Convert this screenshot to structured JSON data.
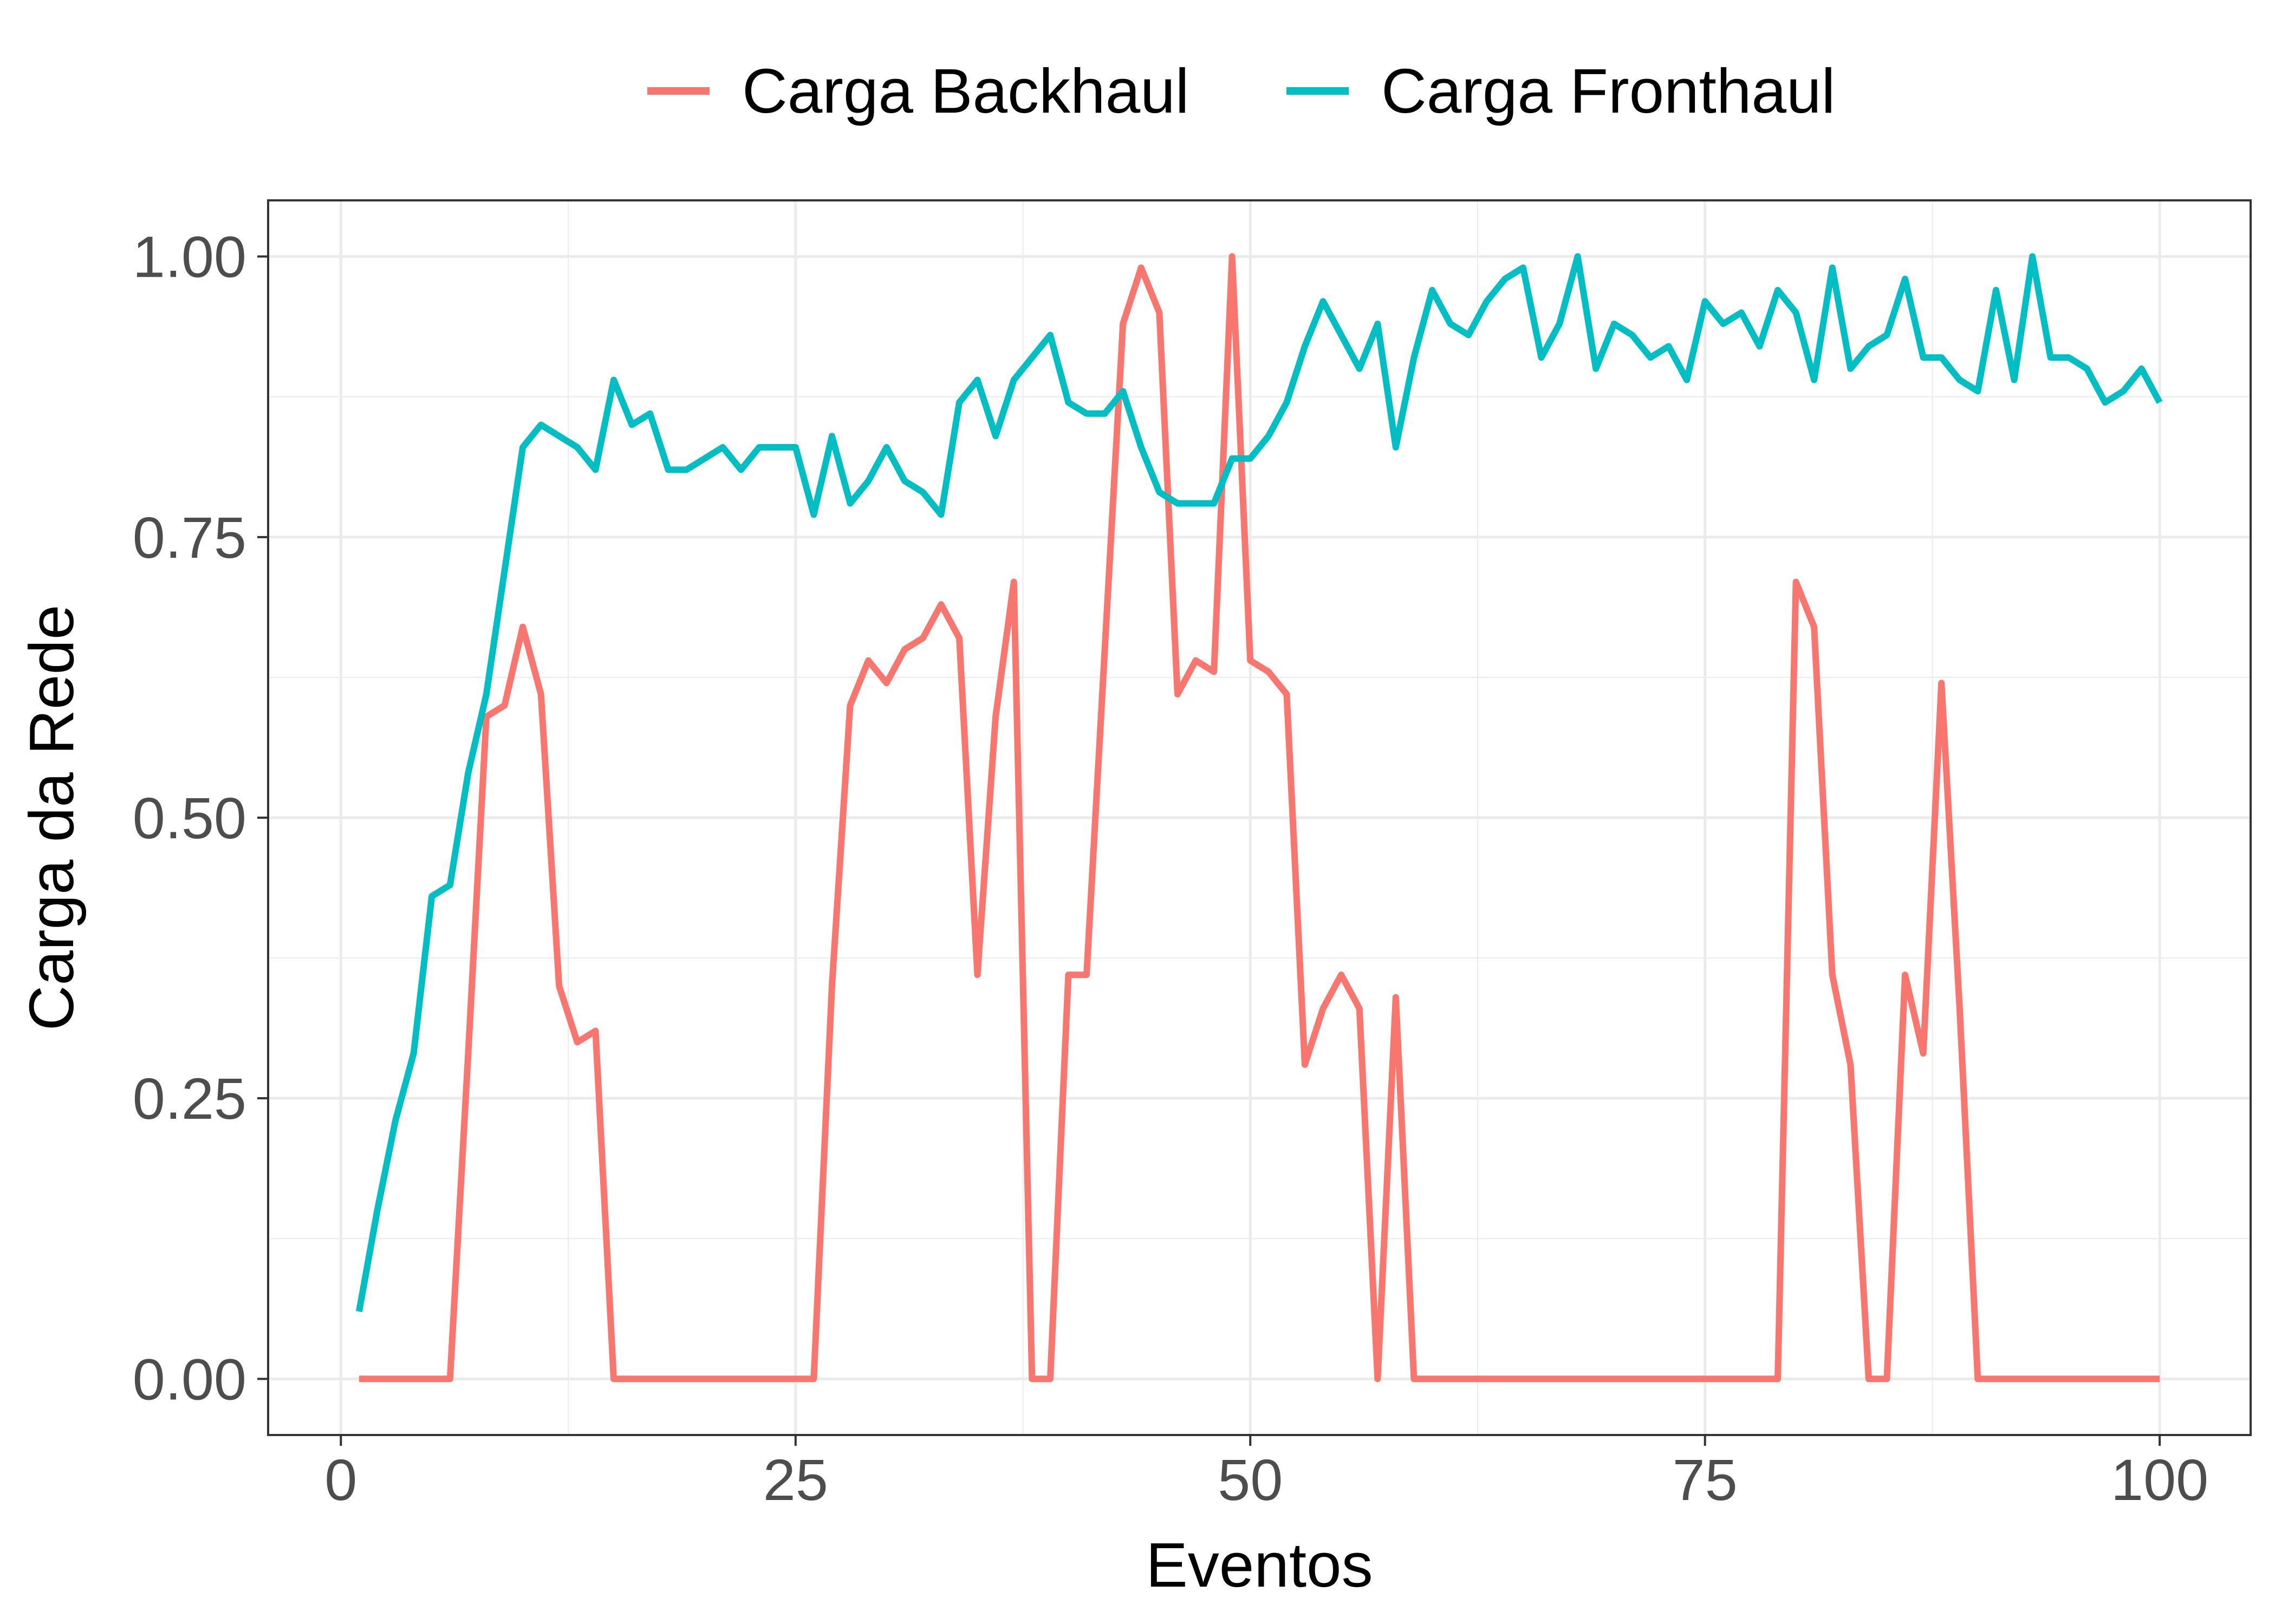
{
  "chart_data": {
    "type": "line",
    "title": "",
    "xlabel": "Eventos",
    "ylabel": "Carga da Rede",
    "xlim": [
      -4,
      105
    ],
    "ylim": [
      -0.05,
      1.05
    ],
    "x_ticks": [
      0,
      25,
      50,
      75,
      100
    ],
    "x_tick_labels": [
      "0",
      "25",
      "50",
      "75",
      "100"
    ],
    "y_ticks": [
      0,
      0.25,
      0.5,
      0.75,
      1.0
    ],
    "y_tick_labels": [
      "0.00",
      "0.25",
      "0.50",
      "0.75",
      "1.00"
    ],
    "grid": true,
    "legend_position": "top",
    "series": [
      {
        "name": "Carga Backhaul",
        "color": "#F8766D",
        "x": [
          1,
          2,
          3,
          4,
          5,
          6,
          7,
          8,
          9,
          10,
          11,
          12,
          13,
          14,
          15,
          16,
          17,
          18,
          19,
          20,
          21,
          22,
          23,
          24,
          25,
          26,
          27,
          28,
          29,
          30,
          31,
          32,
          33,
          34,
          35,
          36,
          37,
          38,
          39,
          40,
          41,
          42,
          43,
          44,
          45,
          46,
          47,
          48,
          49,
          50,
          51,
          52,
          53,
          54,
          55,
          56,
          57,
          58,
          59,
          60,
          61,
          62,
          63,
          64,
          65,
          66,
          67,
          68,
          69,
          70,
          71,
          72,
          73,
          74,
          75,
          76,
          77,
          78,
          79,
          80,
          81,
          82,
          83,
          84,
          85,
          86,
          87,
          88,
          89,
          90,
          91,
          92,
          93,
          94,
          95,
          96,
          97,
          98,
          99,
          100
        ],
        "values": [
          0,
          0,
          0,
          0,
          0,
          0,
          0.29,
          0.59,
          0.6,
          0.67,
          0.61,
          0.35,
          0.3,
          0.31,
          0,
          0,
          0,
          0,
          0,
          0,
          0,
          0,
          0,
          0,
          0,
          0,
          0.35,
          0.6,
          0.64,
          0.62,
          0.65,
          0.66,
          0.69,
          0.66,
          0.36,
          0.59,
          0.71,
          0,
          0,
          0.36,
          0.36,
          0.65,
          0.94,
          0.99,
          0.95,
          0.61,
          0.64,
          0.63,
          1.0,
          0.64,
          0.63,
          0.61,
          0.28,
          0.33,
          0.36,
          0.33,
          0,
          0.34,
          0,
          0,
          0,
          0,
          0,
          0,
          0,
          0,
          0,
          0,
          0,
          0,
          0,
          0,
          0,
          0,
          0,
          0,
          0,
          0,
          0,
          0.71,
          0.67,
          0.36,
          0.28,
          0,
          0,
          0.36,
          0.29,
          0.62,
          0.33,
          0,
          0,
          0,
          0,
          0,
          0,
          0,
          0,
          0,
          0,
          0
        ]
      },
      {
        "name": "Carga Fronthaul",
        "color": "#00BFC4",
        "x": [
          1,
          2,
          3,
          4,
          5,
          6,
          7,
          8,
          9,
          10,
          11,
          12,
          13,
          14,
          15,
          16,
          17,
          18,
          19,
          20,
          21,
          22,
          23,
          24,
          25,
          26,
          27,
          28,
          29,
          30,
          31,
          32,
          33,
          34,
          35,
          36,
          37,
          38,
          39,
          40,
          41,
          42,
          43,
          44,
          45,
          46,
          47,
          48,
          49,
          50,
          51,
          52,
          53,
          54,
          55,
          56,
          57,
          58,
          59,
          60,
          61,
          62,
          63,
          64,
          65,
          66,
          67,
          68,
          69,
          70,
          71,
          72,
          73,
          74,
          75,
          76,
          77,
          78,
          79,
          80,
          81,
          82,
          83,
          84,
          85,
          86,
          87,
          88,
          89,
          90,
          91,
          92,
          93,
          94,
          95,
          96,
          97,
          98,
          99,
          100
        ],
        "values": [
          0.06,
          0.15,
          0.23,
          0.29,
          0.43,
          0.44,
          0.54,
          0.61,
          0.72,
          0.83,
          0.85,
          0.84,
          0.83,
          0.81,
          0.89,
          0.85,
          0.86,
          0.81,
          0.81,
          0.82,
          0.83,
          0.81,
          0.83,
          0.83,
          0.83,
          0.77,
          0.84,
          0.78,
          0.8,
          0.83,
          0.8,
          0.79,
          0.77,
          0.87,
          0.89,
          0.84,
          0.89,
          0.91,
          0.93,
          0.87,
          0.86,
          0.86,
          0.88,
          0.83,
          0.79,
          0.78,
          0.78,
          0.78,
          0.82,
          0.82,
          0.84,
          0.87,
          0.92,
          0.96,
          0.93,
          0.9,
          0.94,
          0.83,
          0.91,
          0.97,
          0.94,
          0.93,
          0.96,
          0.98,
          0.99,
          0.91,
          0.94,
          1.0,
          0.9,
          0.94,
          0.93,
          0.91,
          0.92,
          0.89,
          0.96,
          0.94,
          0.95,
          0.92,
          0.97,
          0.95,
          0.89,
          0.99,
          0.9,
          0.92,
          0.93,
          0.98,
          0.91,
          0.91,
          0.89,
          0.88,
          0.97,
          0.89,
          1.0,
          0.91,
          0.91,
          0.9,
          0.87,
          0.88,
          0.9,
          0.87
        ]
      }
    ]
  }
}
